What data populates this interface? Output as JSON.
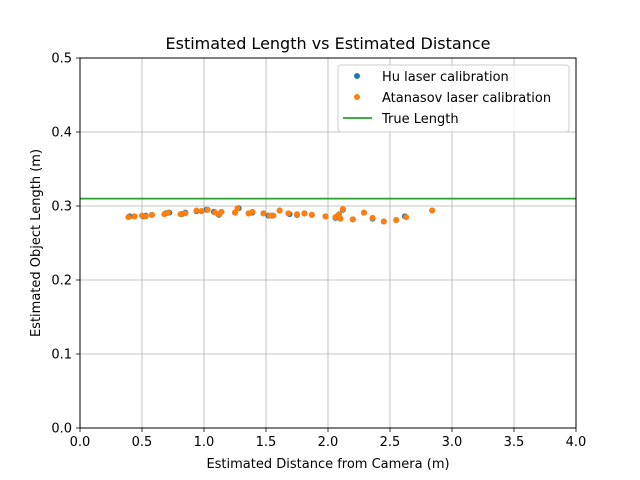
{
  "chart_data": {
    "type": "scatter",
    "title": "Estimated Length vs Estimated Distance",
    "xlabel": "Estimated Distance from Camera (m)",
    "ylabel": "Estimated Object Length (m)",
    "xlim": [
      0.0,
      4.0
    ],
    "ylim": [
      0.0,
      0.5
    ],
    "xticks": [
      "0.0",
      "0.5",
      "1.0",
      "1.5",
      "2.0",
      "2.5",
      "3.0",
      "3.5",
      "4.0"
    ],
    "yticks": [
      "0.0",
      "0.1",
      "0.2",
      "0.3",
      "0.4",
      "0.5"
    ],
    "grid": true,
    "legend_position": "top-right",
    "series": [
      {
        "name": "Hu laser calibration",
        "kind": "scatter",
        "color": "#1f77b4",
        "x": [
          0.4,
          0.44,
          0.51,
          0.53,
          0.58,
          0.69,
          0.72,
          0.82,
          0.85,
          0.94,
          0.98,
          1.02,
          1.08,
          1.12,
          1.14,
          1.25,
          1.28,
          1.36,
          1.39,
          1.48,
          1.52,
          1.55,
          1.61,
          1.69,
          1.75,
          1.81,
          1.87,
          1.98,
          2.06,
          2.08,
          2.1,
          2.12,
          2.2,
          2.29,
          2.36,
          2.45,
          2.55,
          2.62,
          2.84
        ],
        "y": [
          0.286,
          0.286,
          0.286,
          0.287,
          0.288,
          0.29,
          0.291,
          0.289,
          0.291,
          0.293,
          0.293,
          0.295,
          0.292,
          0.288,
          0.292,
          0.291,
          0.297,
          0.29,
          0.291,
          0.29,
          0.287,
          0.287,
          0.294,
          0.289,
          0.288,
          0.29,
          0.288,
          0.286,
          0.284,
          0.287,
          0.283,
          0.295,
          0.282,
          0.291,
          0.283,
          0.279,
          0.281,
          0.286,
          0.294
        ]
      },
      {
        "name": "Atanasov laser calibration",
        "kind": "scatter",
        "color": "#ff7f0e",
        "x": [
          0.39,
          0.44,
          0.5,
          0.53,
          0.58,
          0.68,
          0.71,
          0.81,
          0.85,
          0.94,
          0.98,
          1.03,
          1.09,
          1.12,
          1.14,
          1.25,
          1.27,
          1.36,
          1.39,
          1.48,
          1.53,
          1.56,
          1.61,
          1.68,
          1.75,
          1.81,
          1.87,
          1.98,
          2.06,
          2.09,
          2.1,
          2.12,
          2.2,
          2.29,
          2.36,
          2.45,
          2.55,
          2.63,
          2.84
        ],
        "y": [
          0.285,
          0.286,
          0.287,
          0.286,
          0.288,
          0.289,
          0.291,
          0.289,
          0.29,
          0.294,
          0.293,
          0.295,
          0.291,
          0.289,
          0.292,
          0.291,
          0.297,
          0.29,
          0.292,
          0.29,
          0.287,
          0.287,
          0.294,
          0.29,
          0.289,
          0.29,
          0.288,
          0.286,
          0.285,
          0.289,
          0.283,
          0.296,
          0.282,
          0.291,
          0.284,
          0.279,
          0.281,
          0.285,
          0.294
        ]
      },
      {
        "name": "True Length",
        "kind": "hline",
        "color": "#2ca02c",
        "y": 0.31
      }
    ]
  }
}
